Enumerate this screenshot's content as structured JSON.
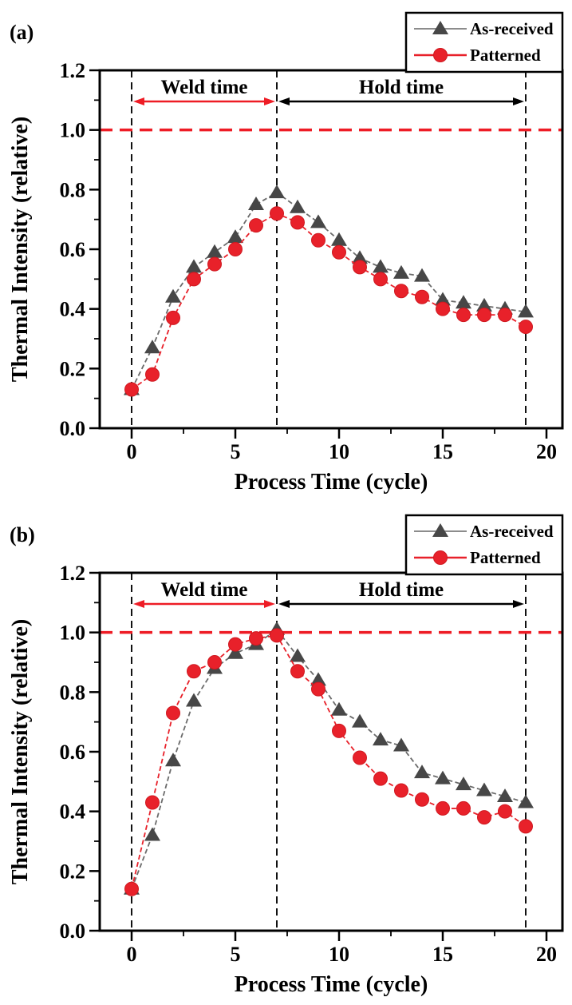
{
  "figure": {
    "background": "#ffffff"
  },
  "colors": {
    "axis": "#000000",
    "vline": "#111111",
    "reference_line": "#ee1c25",
    "as_received_marker": "#474747",
    "as_received_line": "#6b6b6b",
    "as_received_legend_line": "#8c8c8c",
    "patterned_marker": "#e8212a",
    "patterned_line": "#e8212a",
    "legend_border": "#000000"
  },
  "chart_data": [
    {
      "type": "line",
      "panel_label": "(a)",
      "xlabel": "Process Time (cycle)",
      "ylabel": "Thermal Intensity (relative)",
      "xlim": [
        -1.5,
        20.8
      ],
      "ylim": [
        0,
        1.2
      ],
      "x_major_ticks": [
        0,
        5,
        10,
        15,
        20
      ],
      "x_minor_ticks": [
        2.5,
        7.5,
        12.5,
        17.5
      ],
      "y_major_ticks": [
        0.0,
        0.2,
        0.4,
        0.6,
        0.8,
        1.0,
        1.2
      ],
      "y_minor_ticks": [
        0.1,
        0.3,
        0.5,
        0.7,
        0.9,
        1.1
      ],
      "grid": false,
      "x": [
        0,
        1,
        2,
        3,
        4,
        5,
        6,
        7,
        8,
        9,
        10,
        11,
        12,
        13,
        14,
        15,
        16,
        17,
        18,
        19
      ],
      "series": [
        {
          "name": "As-received",
          "marker": "triangle",
          "values": [
            0.13,
            0.27,
            0.44,
            0.54,
            0.59,
            0.64,
            0.75,
            0.79,
            0.74,
            0.69,
            0.63,
            0.57,
            0.54,
            0.52,
            0.51,
            0.43,
            0.42,
            0.41,
            0.4,
            0.39
          ]
        },
        {
          "name": "Patterned",
          "marker": "circle",
          "values": [
            0.13,
            0.18,
            0.37,
            0.5,
            0.55,
            0.6,
            0.68,
            0.72,
            0.69,
            0.63,
            0.59,
            0.54,
            0.5,
            0.46,
            0.44,
            0.4,
            0.38,
            0.38,
            0.38,
            0.34
          ]
        }
      ],
      "reference_line_y": 1.0,
      "vlines_x": [
        0,
        7,
        19
      ],
      "annotations": [
        {
          "text": "Weld time",
          "x_from": 0,
          "x_to": 7,
          "color": "#ee1c25"
        },
        {
          "text": "Hold time",
          "x_from": 7,
          "x_to": 19,
          "color": "#000000"
        }
      ],
      "legend": {
        "position": "top-right",
        "entries": [
          "As-received",
          "Patterned"
        ]
      }
    },
    {
      "type": "line",
      "panel_label": "(b)",
      "xlabel": "Process Time (cycle)",
      "ylabel": "Thermal Intensity (relative)",
      "xlim": [
        -1.5,
        20.8
      ],
      "ylim": [
        0,
        1.2
      ],
      "x_major_ticks": [
        0,
        5,
        10,
        15,
        20
      ],
      "x_minor_ticks": [
        2.5,
        7.5,
        12.5,
        17.5
      ],
      "y_major_ticks": [
        0.0,
        0.2,
        0.4,
        0.6,
        0.8,
        1.0,
        1.2
      ],
      "y_minor_ticks": [
        0.1,
        0.3,
        0.5,
        0.7,
        0.9,
        1.1
      ],
      "grid": false,
      "x": [
        0,
        1,
        2,
        3,
        4,
        5,
        6,
        7,
        8,
        9,
        10,
        11,
        12,
        13,
        14,
        15,
        16,
        17,
        18,
        19
      ],
      "series": [
        {
          "name": "As-received",
          "marker": "triangle",
          "values": [
            0.14,
            0.32,
            0.57,
            0.77,
            0.88,
            0.93,
            0.96,
            1.01,
            0.92,
            0.84,
            0.74,
            0.7,
            0.64,
            0.62,
            0.53,
            0.51,
            0.49,
            0.47,
            0.45,
            0.43
          ]
        },
        {
          "name": "Patterned",
          "marker": "circle",
          "values": [
            0.14,
            0.43,
            0.73,
            0.87,
            0.9,
            0.96,
            0.98,
            0.99,
            0.87,
            0.81,
            0.67,
            0.58,
            0.51,
            0.47,
            0.44,
            0.41,
            0.41,
            0.38,
            0.4,
            0.35
          ]
        }
      ],
      "reference_line_y": 1.0,
      "vlines_x": [
        0,
        7,
        19
      ],
      "annotations": [
        {
          "text": "Weld time",
          "x_from": 0,
          "x_to": 7,
          "color": "#ee1c25"
        },
        {
          "text": "Hold time",
          "x_from": 7,
          "x_to": 19,
          "color": "#000000"
        }
      ],
      "legend": {
        "position": "top-right",
        "entries": [
          "As-received",
          "Patterned"
        ]
      }
    }
  ]
}
